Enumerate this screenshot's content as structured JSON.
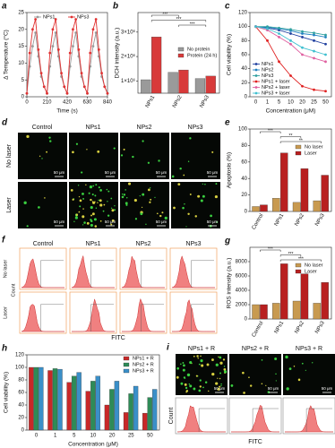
{
  "chart_data": [
    {
      "panel": "a",
      "type": "line",
      "x_label": "Time (s)",
      "y_label": "Δ Temperature (°C)",
      "x": [
        0,
        30,
        60,
        90,
        120,
        150,
        180,
        210,
        240,
        270,
        300,
        330,
        360,
        390,
        420,
        450,
        480,
        510,
        540,
        570,
        600,
        630,
        660,
        690,
        720,
        750,
        780,
        810,
        840
      ],
      "xlim": [
        0,
        840
      ],
      "xticks": [
        0,
        210,
        420,
        630,
        840
      ],
      "ylim": [
        0,
        25
      ],
      "yticks": [
        0,
        5,
        10,
        15,
        20,
        25
      ],
      "legend": "top",
      "series": [
        {
          "name": "NPs1",
          "color": "#9a9a9a",
          "values": [
            1,
            9,
            15,
            19,
            12,
            6,
            3,
            1,
            9,
            15,
            19,
            12,
            6,
            3,
            1,
            9,
            15,
            19,
            12,
            6,
            3,
            1,
            9,
            15,
            19,
            12,
            6,
            3,
            1
          ]
        },
        {
          "name": "NPs3",
          "color": "#e03030",
          "values": [
            1,
            13,
            20,
            23,
            14,
            7,
            3,
            1,
            13,
            20,
            23,
            14,
            7,
            3,
            1,
            13,
            20,
            23,
            14,
            7,
            3,
            1,
            13,
            20,
            23,
            14,
            7,
            3,
            1
          ]
        }
      ]
    },
    {
      "panel": "b",
      "type": "bar",
      "y_label": "DCH intensity (a.u.)",
      "categories": [
        "NPs1",
        "NPs2",
        "NPs3"
      ],
      "ylim": [
        500000,
        3800000
      ],
      "yticks": [
        {
          "value": 1000000,
          "label": "1×10⁶"
        },
        {
          "value": 2000000,
          "label": "2×10⁶"
        },
        {
          "value": 3000000,
          "label": "3×10⁶"
        }
      ],
      "legend": "center-right",
      "annotations": [
        "***",
        "***",
        "***"
      ],
      "series": [
        {
          "name": "No protein",
          "color": "#9a9a9a",
          "values": [
            1050000,
            1350000,
            1100000
          ]
        },
        {
          "name": "Protein (24 h)",
          "color": "#d83a3a",
          "values": [
            2800000,
            1450000,
            1200000
          ]
        }
      ]
    },
    {
      "panel": "c",
      "type": "line",
      "x_label": "Concentration (μM)",
      "y_label": "Cell viability (%)",
      "categories": [
        "0",
        "1",
        "5",
        "10",
        "20",
        "25",
        "50"
      ],
      "ylim": [
        0,
        120
      ],
      "yticks": [
        0,
        20,
        40,
        60,
        80,
        100,
        120
      ],
      "legend": "bottom-left",
      "series": [
        {
          "name": "NPs1",
          "color": "#1f3f9f",
          "values": [
            100,
            98,
            95,
            90,
            85,
            80,
            75
          ]
        },
        {
          "name": "NPs2",
          "color": "#2080c0",
          "values": [
            100,
            99,
            97,
            94,
            90,
            88,
            85
          ]
        },
        {
          "name": "NPs3",
          "color": "#30a0a0",
          "values": [
            100,
            100,
            98,
            96,
            93,
            91,
            88
          ]
        },
        {
          "name": "NPs1 + laser",
          "color": "#e02020",
          "values": [
            100,
            80,
            50,
            30,
            15,
            10,
            8
          ]
        },
        {
          "name": "NPs2 + laser",
          "color": "#e060a0",
          "values": [
            100,
            95,
            85,
            75,
            60,
            55,
            50
          ]
        },
        {
          "name": "NPs3 + laser",
          "color": "#40c0d0",
          "values": [
            100,
            97,
            90,
            80,
            70,
            65,
            60
          ]
        }
      ]
    },
    {
      "panel": "e",
      "type": "bar",
      "y_label": "Apoptosis (%)",
      "categories": [
        "Control",
        "NPs1",
        "NPs2",
        "NPs3"
      ],
      "ylim": [
        0,
        100
      ],
      "yticks": [
        0,
        20,
        40,
        60,
        80,
        100
      ],
      "legend": "top-right",
      "annotations": [
        "***",
        "**",
        "**"
      ],
      "series": [
        {
          "name": "No laser",
          "color": "#c89a50",
          "values": [
            6,
            16,
            11,
            13
          ]
        },
        {
          "name": "Laser",
          "color": "#b82020",
          "values": [
            8,
            71,
            52,
            44
          ]
        }
      ]
    },
    {
      "panel": "g",
      "type": "bar",
      "y_label": "ROS intensity (a.u.)",
      "categories": [
        "Control",
        "NPs1",
        "NPs2",
        "NPs3"
      ],
      "ylim": [
        0,
        10000
      ],
      "yticks": [
        0,
        2000,
        4000,
        6000,
        8000
      ],
      "legend": "top-right",
      "annotations": [
        "***",
        "***",
        "***"
      ],
      "series": [
        {
          "name": "No laser",
          "color": "#c89a50",
          "values": [
            2000,
            2200,
            2500,
            2200
          ]
        },
        {
          "name": "Laser",
          "color": "#b82020",
          "values": [
            2000,
            7700,
            6300,
            5100
          ]
        }
      ]
    },
    {
      "panel": "h",
      "type": "bar",
      "x_label": "Concentration (μM)",
      "y_label": "Cell viability (%)",
      "categories": [
        "0",
        "1",
        "5",
        "10",
        "20",
        "25",
        "50"
      ],
      "ylim": [
        0,
        120
      ],
      "yticks": [
        0,
        20,
        40,
        60,
        80,
        100,
        120
      ],
      "legend": "top-right",
      "series": [
        {
          "name": "NPs1 + R",
          "color": "#c82828",
          "values": [
            100,
            95,
            76,
            62,
            40,
            28,
            27
          ]
        },
        {
          "name": "NPs2 + R",
          "color": "#2e8b57",
          "values": [
            100,
            98,
            86,
            78,
            65,
            58,
            52
          ]
        },
        {
          "name": "NPs3 + R",
          "color": "#3a8fc8",
          "values": [
            100,
            97,
            92,
            86,
            78,
            70,
            65
          ]
        }
      ]
    }
  ],
  "images": {
    "d": {
      "panel": "d",
      "columns": [
        "Control",
        "NPs1",
        "NPs2",
        "NPs3"
      ],
      "rows": [
        "No laser",
        "Laser"
      ],
      "scale_bar": "50 μm"
    },
    "f": {
      "panel": "f",
      "columns": [
        "Control",
        "NPs1",
        "NPs2",
        "NPs3"
      ],
      "rows": [
        "No laser",
        "Laser"
      ],
      "y_label": "Count",
      "x_label": "FITC"
    },
    "i": {
      "panel": "i",
      "columns": [
        "NPs1 + R",
        "NPs2 + R",
        "NPs3 + R"
      ],
      "scale_bar": "50 μm",
      "y_label": "Count",
      "x_label": "FITC"
    }
  }
}
